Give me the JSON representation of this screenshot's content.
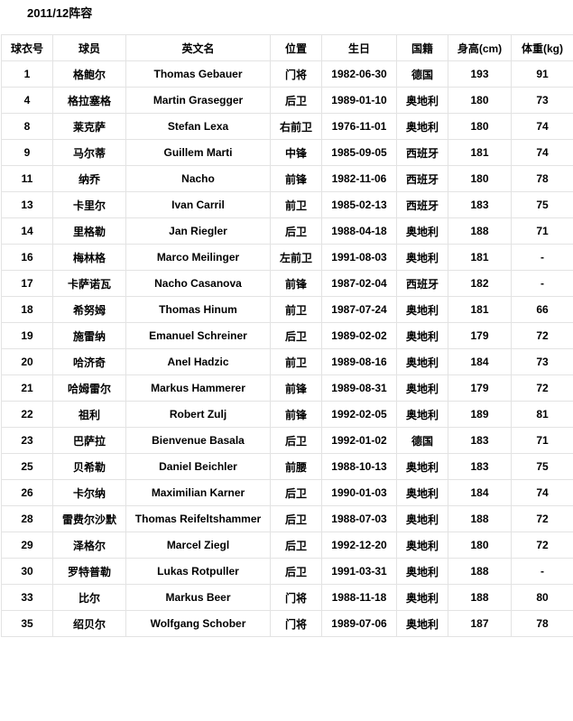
{
  "title": "2011/12阵容",
  "columns": [
    "球衣号",
    "球员",
    "英文名",
    "位置",
    "生日",
    "国籍",
    "身高(cm)",
    "体重(kg)"
  ],
  "rows": [
    [
      "1",
      "格鲍尔",
      "Thomas Gebauer",
      "门将",
      "1982-06-30",
      "德国",
      "193",
      "91"
    ],
    [
      "4",
      "格拉塞格",
      "Martin Grasegger",
      "后卫",
      "1989-01-10",
      "奥地利",
      "180",
      "73"
    ],
    [
      "8",
      "莱克萨",
      "Stefan Lexa",
      "右前卫",
      "1976-11-01",
      "奥地利",
      "180",
      "74"
    ],
    [
      "9",
      "马尔蒂",
      "Guillem Marti",
      "中锋",
      "1985-09-05",
      "西班牙",
      "181",
      "74"
    ],
    [
      "11",
      "纳乔",
      "Nacho",
      "前锋",
      "1982-11-06",
      "西班牙",
      "180",
      "78"
    ],
    [
      "13",
      "卡里尔",
      "Ivan Carril",
      "前卫",
      "1985-02-13",
      "西班牙",
      "183",
      "75"
    ],
    [
      "14",
      "里格勒",
      "Jan Riegler",
      "后卫",
      "1988-04-18",
      "奥地利",
      "188",
      "71"
    ],
    [
      "16",
      "梅林格",
      "Marco Meilinger",
      "左前卫",
      "1991-08-03",
      "奥地利",
      "181",
      "-"
    ],
    [
      "17",
      "卡萨诺瓦",
      "Nacho Casanova",
      "前锋",
      "1987-02-04",
      "西班牙",
      "182",
      "-"
    ],
    [
      "18",
      "希努姆",
      "Thomas Hinum",
      "前卫",
      "1987-07-24",
      "奥地利",
      "181",
      "66"
    ],
    [
      "19",
      "施雷纳",
      "Emanuel Schreiner",
      "后卫",
      "1989-02-02",
      "奥地利",
      "179",
      "72"
    ],
    [
      "20",
      "哈济奇",
      "Anel Hadzic",
      "前卫",
      "1989-08-16",
      "奥地利",
      "184",
      "73"
    ],
    [
      "21",
      "哈姆雷尔",
      "Markus Hammerer",
      "前锋",
      "1989-08-31",
      "奥地利",
      "179",
      "72"
    ],
    [
      "22",
      "祖利",
      "Robert Zulj",
      "前锋",
      "1992-02-05",
      "奥地利",
      "189",
      "81"
    ],
    [
      "23",
      "巴萨拉",
      "Bienvenue Basala",
      "后卫",
      "1992-01-02",
      "德国",
      "183",
      "71"
    ],
    [
      "25",
      "贝希勒",
      "Daniel Beichler",
      "前腰",
      "1988-10-13",
      "奥地利",
      "183",
      "75"
    ],
    [
      "26",
      "卡尔纳",
      "Maximilian Karner",
      "后卫",
      "1990-01-03",
      "奥地利",
      "184",
      "74"
    ],
    [
      "28",
      "雷费尔沙默",
      "Thomas Reifeltshammer",
      "后卫",
      "1988-07-03",
      "奥地利",
      "188",
      "72"
    ],
    [
      "29",
      "泽格尔",
      "Marcel Ziegl",
      "后卫",
      "1992-12-20",
      "奥地利",
      "180",
      "72"
    ],
    [
      "30",
      "罗特普勒",
      "Lukas Rotpuller",
      "后卫",
      "1991-03-31",
      "奥地利",
      "188",
      "-"
    ],
    [
      "33",
      "比尔",
      "Markus Beer",
      "门将",
      "1988-11-18",
      "奥地利",
      "188",
      "80"
    ],
    [
      "35",
      "绍贝尔",
      "Wolfgang Schober",
      "门将",
      "1989-07-06",
      "奥地利",
      "187",
      "78"
    ]
  ]
}
